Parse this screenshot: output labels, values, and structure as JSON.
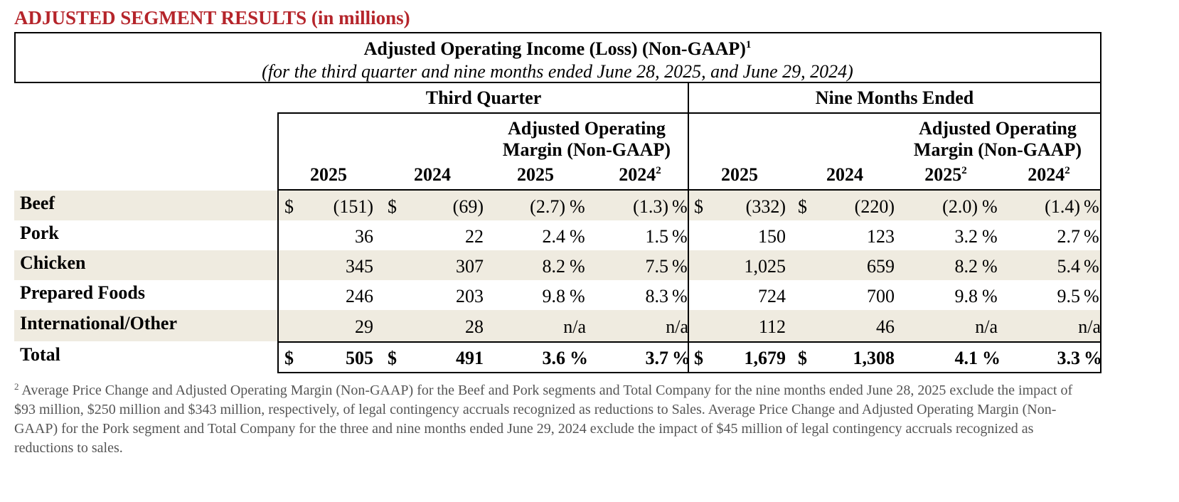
{
  "header": {
    "title": "ADJUSTED SEGMENT RESULTS (in millions)"
  },
  "table": {
    "caption": {
      "text": "Adjusted Operating Income (Loss) (Non-GAAP)",
      "note": "1",
      "subtitle": "(for the third quarter and nine months ended June 28, 2025, and June 29, 2024)"
    },
    "sections": [
      "Third Quarter",
      "Nine Months Ended"
    ],
    "margin_header": [
      [
        "Adjusted Operating",
        "Margin (Non-GAAP)"
      ],
      [
        "Adjusted Operating",
        "Margin (Non-GAAP)"
      ]
    ],
    "columns": [
      {
        "text": "2025"
      },
      {
        "text": "2024"
      },
      {
        "text": "2025"
      },
      {
        "text": "2024",
        "note": "2"
      },
      {
        "text": "2025"
      },
      {
        "text": "2024"
      },
      {
        "text": "2025",
        "note": "2"
      },
      {
        "text": "2024",
        "note": "2"
      }
    ],
    "rows": [
      {
        "label": "Beef",
        "cells": [
          {
            "currency": "$",
            "value": "(151)"
          },
          {
            "currency": "$",
            "value": "(69)"
          },
          {
            "value": "(2.7)",
            "unit": "%"
          },
          {
            "value": "(1.3)",
            "unit": "%"
          },
          {
            "currency": "$",
            "value": "(332)"
          },
          {
            "currency": "$",
            "value": "(220)"
          },
          {
            "value": "(2.0)",
            "unit": "%"
          },
          {
            "value": "(1.4)",
            "unit": "%"
          }
        ]
      },
      {
        "label": "Pork",
        "cells": [
          {
            "value": "36"
          },
          {
            "value": "22"
          },
          {
            "value": "2.4",
            "unit": "%"
          },
          {
            "value": "1.5",
            "unit": "%"
          },
          {
            "value": "150"
          },
          {
            "value": "123"
          },
          {
            "value": "3.2",
            "unit": "%"
          },
          {
            "value": "2.7",
            "unit": "%"
          }
        ]
      },
      {
        "label": "Chicken",
        "cells": [
          {
            "value": "345"
          },
          {
            "value": "307"
          },
          {
            "value": "8.2",
            "unit": "%"
          },
          {
            "value": "7.5",
            "unit": "%"
          },
          {
            "value": "1,025"
          },
          {
            "value": "659"
          },
          {
            "value": "8.2",
            "unit": "%"
          },
          {
            "value": "5.4",
            "unit": "%"
          }
        ]
      },
      {
        "label": "Prepared Foods",
        "cells": [
          {
            "value": "246"
          },
          {
            "value": "203"
          },
          {
            "value": "9.8",
            "unit": "%"
          },
          {
            "value": "8.3",
            "unit": "%"
          },
          {
            "value": "724"
          },
          {
            "value": "700"
          },
          {
            "value": "9.8",
            "unit": "%"
          },
          {
            "value": "9.5",
            "unit": "%"
          }
        ]
      },
      {
        "label": "International/Other",
        "cells": [
          {
            "value": "29"
          },
          {
            "value": "28"
          },
          {
            "value": "n/a"
          },
          {
            "value": "n/a"
          },
          {
            "value": "112"
          },
          {
            "value": "46"
          },
          {
            "value": "n/a"
          },
          {
            "value": "n/a"
          }
        ]
      },
      {
        "label": "Total",
        "cells": [
          {
            "currency": "$",
            "value": "505"
          },
          {
            "currency": "$",
            "value": "491"
          },
          {
            "value": "3.6",
            "unit": "%"
          },
          {
            "value": "3.7",
            "unit": "%"
          },
          {
            "currency": "$",
            "value": "1,679"
          },
          {
            "currency": "$",
            "value": "1,308"
          },
          {
            "value": "4.1",
            "unit": "%"
          },
          {
            "value": "3.3",
            "unit": "%"
          }
        ]
      }
    ]
  },
  "footnote": {
    "marker": "2",
    "text": "Average Price Change and Adjusted Operating Margin (Non-GAAP) for the Beef and Pork segments and Total Company for the nine months ended June 28, 2025 exclude the impact of $93 million, $250 million and $343 million, respectively, of legal contingency accruals recognized as reductions to Sales. Average Price Change and Adjusted Operating Margin (Non-GAAP) for the Pork segment and Total Company for the three and nine months ended June 29, 2024 exclude the impact of $45 million of legal contingency accruals recognized as reductions to sales."
  }
}
